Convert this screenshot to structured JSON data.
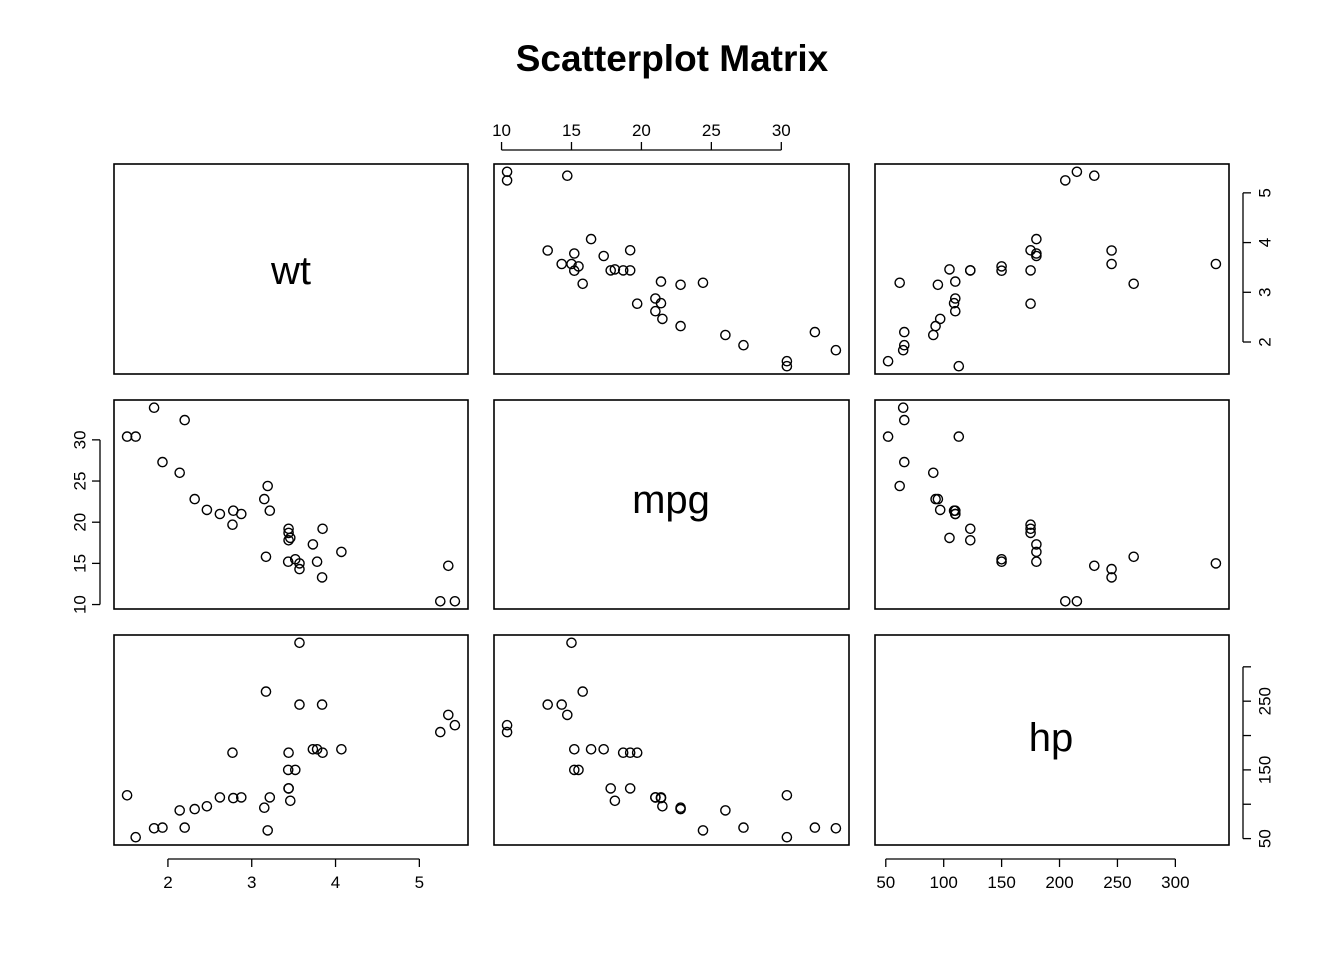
{
  "chart_data": {
    "type": "scatter",
    "title": "Scatterplot Matrix",
    "variables": [
      "wt",
      "mpg",
      "hp"
    ],
    "ranges": {
      "wt": [
        1.513,
        5.424
      ],
      "mpg": [
        10.4,
        33.9
      ],
      "hp": [
        52,
        335
      ]
    },
    "ticks": {
      "wt": [
        2,
        3,
        4,
        5
      ],
      "mpg": [
        10,
        15,
        20,
        25,
        30
      ],
      "hp": [
        50,
        100,
        150,
        200,
        250,
        300
      ]
    },
    "tick_labels": {
      "wt_bottom": [
        "2",
        "3",
        "4",
        "5"
      ],
      "mpg_top": [
        "10",
        "15",
        "20",
        "25",
        "30"
      ],
      "mpg_left": [
        "10",
        "15",
        "20",
        "25",
        "30"
      ],
      "hp_bottom": [
        "50",
        "100",
        "150",
        "200",
        "250",
        "300"
      ],
      "wt_right": [
        "2",
        "3",
        "4",
        "5"
      ],
      "hp_right": [
        "50",
        "150",
        "250"
      ]
    },
    "points": {
      "wt": [
        2.62,
        2.875,
        2.32,
        3.215,
        3.44,
        3.46,
        3.57,
        3.19,
        3.15,
        3.44,
        3.44,
        4.07,
        3.73,
        3.78,
        5.25,
        5.424,
        5.345,
        2.2,
        1.615,
        1.835,
        2.465,
        3.52,
        3.435,
        3.84,
        3.845,
        1.935,
        2.14,
        1.513,
        3.17,
        2.77,
        3.57,
        2.78
      ],
      "mpg": [
        21.0,
        21.0,
        22.8,
        21.4,
        18.7,
        18.1,
        14.3,
        24.4,
        22.8,
        19.2,
        17.8,
        16.4,
        17.3,
        15.2,
        10.4,
        10.4,
        14.7,
        32.4,
        30.4,
        33.9,
        21.5,
        15.5,
        15.2,
        13.3,
        19.2,
        27.3,
        26.0,
        30.4,
        15.8,
        19.7,
        15.0,
        21.4
      ],
      "hp": [
        110,
        110,
        93,
        110,
        175,
        105,
        245,
        62,
        95,
        123,
        123,
        180,
        180,
        180,
        205,
        215,
        230,
        66,
        52,
        65,
        97,
        150,
        150,
        245,
        175,
        66,
        91,
        113,
        264,
        175,
        335,
        109
      ]
    },
    "grid": false,
    "legend": "none"
  }
}
